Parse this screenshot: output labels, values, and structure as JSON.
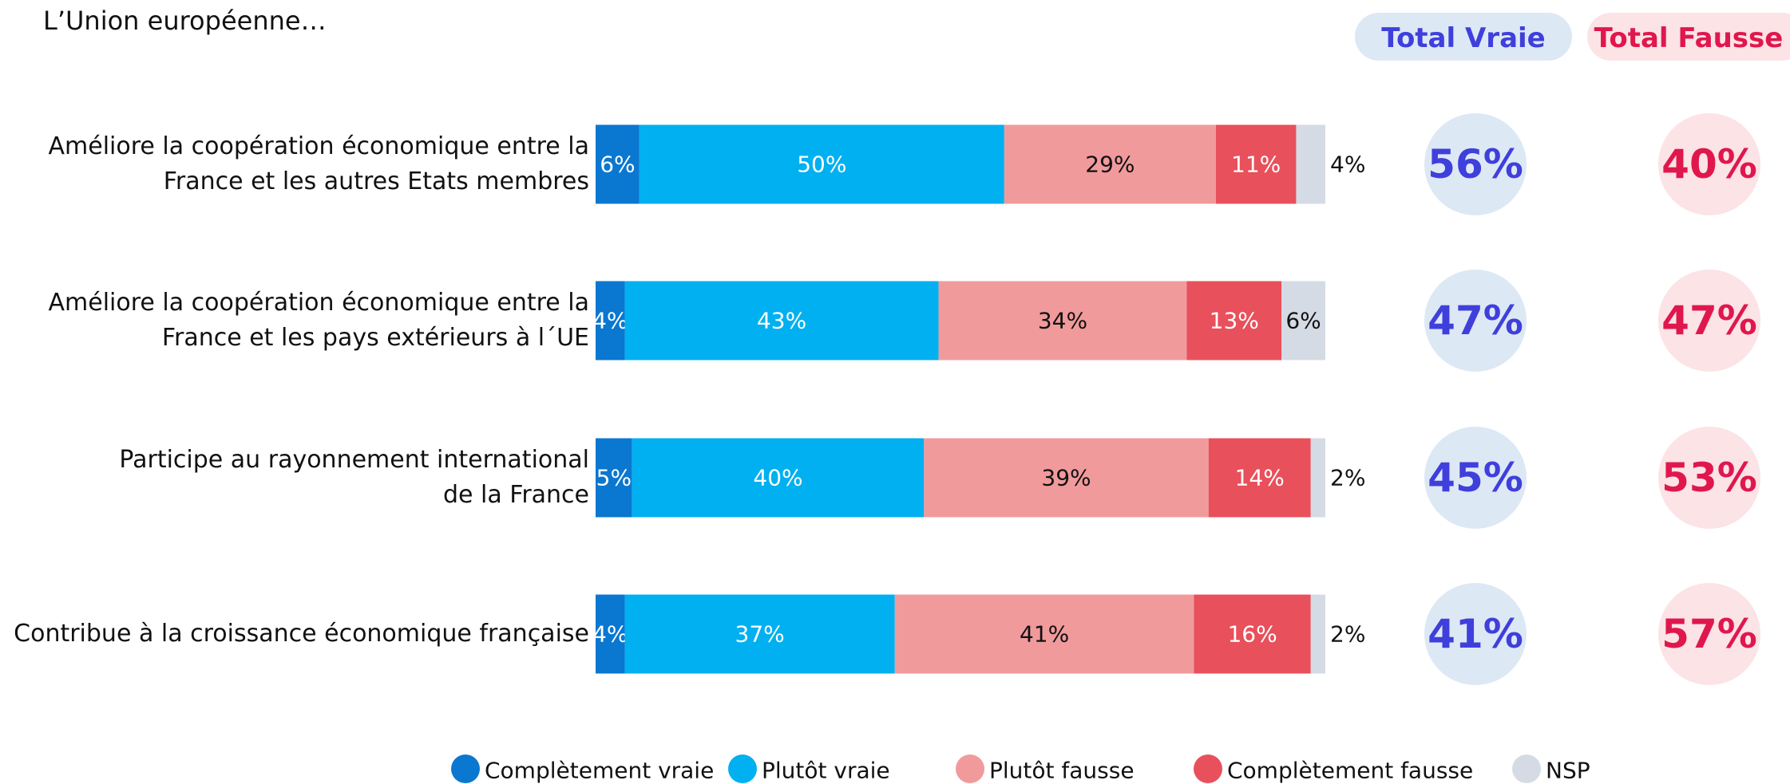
{
  "chart_data": {
    "type": "stacked-bar-horizontal",
    "title": "L’Union européenne…",
    "categories": [
      "Améliore la coopération économique entre la\nFrance et les autres Etats membres",
      "Améliore la coopération économique entre la\nFrance et les pays extérieurs à l´UE",
      "Participe au rayonnement international\nde la France",
      "Contribue à la croissance économique française"
    ],
    "xlim": [
      0,
      100
    ],
    "series": [
      {
        "name": "Complètement vraie",
        "color": "#0a77d0",
        "values": [
          6,
          4,
          5,
          4
        ],
        "value_labels": [
          "6%",
          "4%",
          "5%",
          "4%"
        ]
      },
      {
        "name": "Plutôt vraie",
        "color": "#00b0f0",
        "values": [
          50,
          43,
          40,
          37
        ],
        "value_labels": [
          "50%",
          "43%",
          "40%",
          "37%"
        ]
      },
      {
        "name": "Plutôt fausse",
        "color": "#f19a9c",
        "values": [
          29,
          34,
          39,
          41
        ],
        "value_labels": [
          "29%",
          "34%",
          "39%",
          "41%"
        ]
      },
      {
        "name": "Complètement fausse",
        "color": "#e8505b",
        "values": [
          11,
          13,
          14,
          16
        ],
        "value_labels": [
          "11%",
          "13%",
          "14%",
          "16%"
        ]
      },
      {
        "name": "NSP",
        "color": "#d5dbe5",
        "values": [
          4,
          6,
          2,
          2
        ],
        "value_labels": [
          "4%",
          "6%",
          "2%",
          "2%"
        ]
      }
    ],
    "totals": [
      {
        "name": "Total Vraie",
        "color": "#3f3fdc",
        "background": "#dde8f5",
        "values": [
          56,
          47,
          45,
          41
        ],
        "value_labels": [
          "56%",
          "47%",
          "45%",
          "41%"
        ]
      },
      {
        "name": "Total Fausse",
        "color": "#e0174d",
        "background": "#fbe3e6",
        "values": [
          40,
          47,
          53,
          57
        ],
        "value_labels": [
          "40%",
          "47%",
          "53%",
          "57%"
        ]
      }
    ]
  }
}
